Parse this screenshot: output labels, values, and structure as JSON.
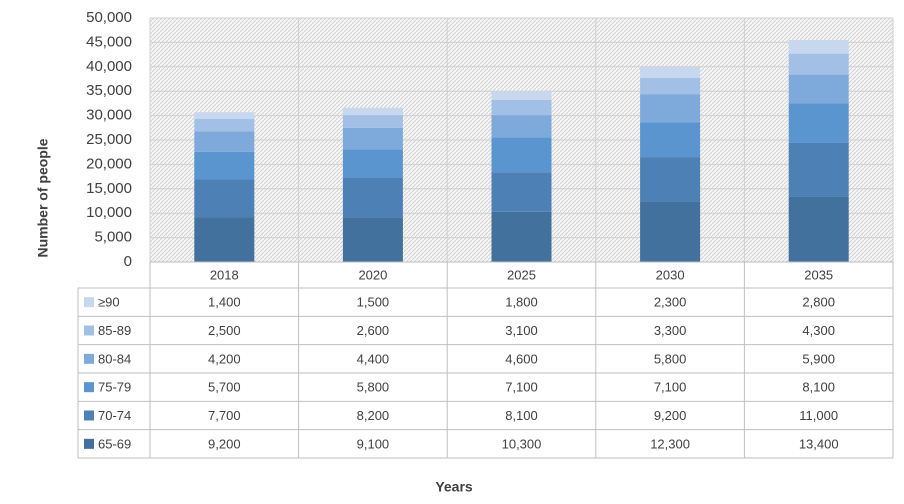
{
  "chart_data": {
    "type": "bar",
    "stacked": true,
    "x_label": "Years",
    "y_label": "Number of people",
    "categories": [
      "2018",
      "2020",
      "2025",
      "2030",
      "2035"
    ],
    "series": [
      {
        "name": "65-69",
        "color": "#41719c",
        "values": [
          9200,
          9100,
          10300,
          12300,
          13400
        ],
        "value_labels": [
          "9,200",
          "9,100",
          "10,300",
          "12,300",
          "13,400"
        ]
      },
      {
        "name": "70-74",
        "color": "#4d80b5",
        "values": [
          7700,
          8200,
          8100,
          9200,
          11000
        ],
        "value_labels": [
          "7,700",
          "8,200",
          "8,100",
          "9,200",
          "11,000"
        ]
      },
      {
        "name": "75-79",
        "color": "#5b95cf",
        "values": [
          5700,
          5800,
          7100,
          7100,
          8100
        ],
        "value_labels": [
          "5,700",
          "5,800",
          "7,100",
          "7,100",
          "8,100"
        ]
      },
      {
        "name": "80-84",
        "color": "#7eaadb",
        "values": [
          4200,
          4400,
          4600,
          5800,
          5900
        ],
        "value_labels": [
          "4,200",
          "4,400",
          "4,600",
          "5,800",
          "5,900"
        ]
      },
      {
        "name": "85-89",
        "color": "#a2c0e5",
        "values": [
          2500,
          2600,
          3100,
          3300,
          4300
        ],
        "value_labels": [
          "2,500",
          "2,600",
          "3,100",
          "3,300",
          "4,300"
        ]
      },
      {
        "name": "≥90",
        "color": "#c6d7ee",
        "values": [
          1400,
          1500,
          1800,
          2300,
          2800
        ],
        "value_labels": [
          "1,400",
          "1,500",
          "1,800",
          "2,300",
          "2,800"
        ]
      }
    ],
    "ylim": [
      0,
      50000
    ],
    "yticks": [
      0,
      {
        "value": 5000,
        "label": "5,000"
      },
      {
        "value": 10000,
        "label": "10,000"
      },
      {
        "value": 15000,
        "label": "15,000"
      },
      {
        "value": 20000,
        "label": "20,000"
      },
      {
        "value": 25000,
        "label": "25,000"
      },
      {
        "value": 30000,
        "label": "30,000"
      },
      {
        "value": 35000,
        "label": "35,000"
      },
      {
        "value": 40000,
        "label": "40,000"
      },
      {
        "value": 45000,
        "label": "45,000"
      },
      {
        "value": 50000,
        "label": "50,000"
      }
    ],
    "grid": true
  }
}
